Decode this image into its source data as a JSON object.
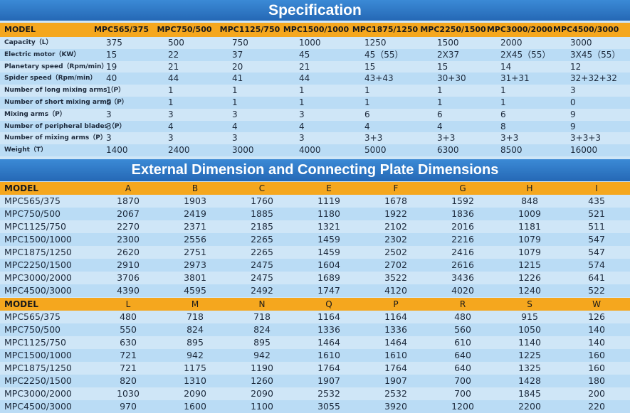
{
  "spec": {
    "title": "Specification",
    "header": [
      "MODEL",
      "MPC565/375",
      "MPC750/500",
      "MPC1125/750",
      "MPC1500/1000",
      "MPC1875/1250",
      "MPC2250/1500",
      "MPC3000/2000",
      "MPC4500/3000"
    ],
    "rows": [
      [
        "Capacity（L）",
        375,
        500,
        750,
        1000,
        1250,
        1500,
        2000,
        3000
      ],
      [
        "Electric motor（KW）",
        15,
        22,
        37,
        45,
        "45（55）",
        "2X37",
        "2X45（55）",
        "3X45（55）"
      ],
      [
        "Planetary speed（Rpm/min）",
        19,
        21,
        20,
        21,
        15,
        15,
        14,
        12
      ],
      [
        "Spider speed（Rpm/min）",
        40,
        44,
        41,
        44,
        "43+43",
        "30+30",
        "31+31",
        "32+32+32"
      ],
      [
        "Number of long mixing arms（P）",
        1,
        1,
        1,
        1,
        1,
        1,
        1,
        3
      ],
      [
        "Number of short mixing arms（P）",
        0,
        1,
        1,
        1,
        1,
        1,
        1,
        0
      ],
      [
        "Mixing arms（P）",
        3,
        3,
        3,
        3,
        6,
        6,
        6,
        9
      ],
      [
        "Number of peripheral blades（P）",
        3,
        4,
        4,
        4,
        4,
        4,
        8,
        9
      ],
      [
        "Number of mixing arms（P）",
        3,
        3,
        3,
        3,
        "3+3",
        "3+3",
        "3+3",
        "3+3+3"
      ],
      [
        "Weight（T）",
        1400,
        2400,
        3000,
        4000,
        5000,
        6300,
        8500,
        16000
      ]
    ]
  },
  "dimensions": {
    "title": "External Dimension and Connecting Plate Dimensions",
    "tables": [
      {
        "header": [
          "MODEL",
          "A",
          "B",
          "C",
          "E",
          "F",
          "G",
          "H",
          "I"
        ],
        "rows": [
          [
            "MPC565/375",
            1870,
            1903,
            1760,
            1119,
            1678,
            1592,
            848,
            435
          ],
          [
            "MPC750/500",
            2067,
            2419,
            1885,
            1180,
            1922,
            1836,
            1009,
            521
          ],
          [
            "MPC1125/750",
            2270,
            2371,
            2185,
            1321,
            2102,
            2016,
            1181,
            511
          ],
          [
            "MPC1500/1000",
            2300,
            2556,
            2265,
            1459,
            2302,
            2216,
            1079,
            547
          ],
          [
            "MPC1875/1250",
            2620,
            2751,
            2265,
            1459,
            2502,
            2416,
            1079,
            547
          ],
          [
            "MPC2250/1500",
            2910,
            2973,
            2475,
            1604,
            2702,
            2616,
            1215,
            574
          ],
          [
            "MPC3000/2000",
            3706,
            3801,
            2475,
            1689,
            3522,
            3436,
            1226,
            641
          ],
          [
            "MPC4500/3000",
            4390,
            4595,
            2492,
            1747,
            4120,
            4020,
            1240,
            522
          ]
        ]
      },
      {
        "header": [
          "MODEL",
          "L",
          "M",
          "N",
          "Q",
          "P",
          "R",
          "S",
          "W"
        ],
        "rows": [
          [
            "MPC565/375",
            480,
            718,
            718,
            1164,
            1164,
            480,
            915,
            126
          ],
          [
            "MPC750/500",
            550,
            824,
            824,
            1336,
            1336,
            560,
            1050,
            140
          ],
          [
            "MPC1125/750",
            630,
            895,
            895,
            1464,
            1464,
            610,
            1140,
            140
          ],
          [
            "MPC1500/1000",
            721,
            942,
            942,
            1610,
            1610,
            640,
            1225,
            160
          ],
          [
            "MPC1875/1250",
            721,
            1175,
            1190,
            1764,
            1764,
            640,
            1325,
            160
          ],
          [
            "MPC2250/1500",
            820,
            1310,
            1260,
            1907,
            1907,
            700,
            1428,
            180
          ],
          [
            "MPC3000/2000",
            1030,
            2090,
            2090,
            2532,
            2532,
            700,
            1845,
            200
          ],
          [
            "MPC4500/3000",
            970,
            1600,
            1100,
            3055,
            3920,
            1200,
            2200,
            220
          ]
        ]
      }
    ]
  }
}
